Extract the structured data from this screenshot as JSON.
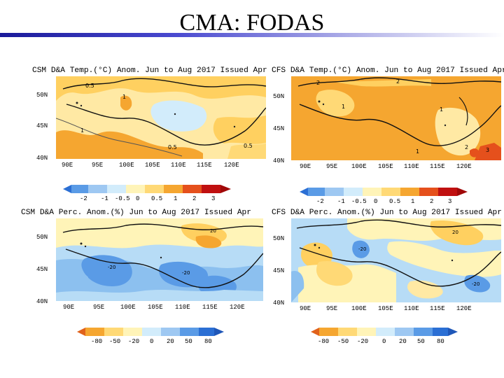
{
  "slide": {
    "title": "CMA: FODAS"
  },
  "panels": [
    {
      "title": "CSM D&A Temp.(°C) Anom. Jun to Aug 2017 Issued Apr",
      "yticks": [
        "50N",
        "45N",
        "40N"
      ],
      "xticks": [
        "90E",
        "95E",
        "100E",
        "105E",
        "110E",
        "115E",
        "120E"
      ]
    },
    {
      "title": "CFS D&A Temp.(°C) Anom. Jun to Aug 2017 Issued Apr",
      "yticks": [
        "50N",
        "45N",
        "40N"
      ],
      "xticks": [
        "90E",
        "95E",
        "100E",
        "105E",
        "110E",
        "115E",
        "120E"
      ]
    },
    {
      "title": "CSM D&A Perc. Anom.(%) Jun to Aug 2017 Issued Apr",
      "yticks": [
        "50N",
        "45N",
        "40N"
      ],
      "xticks": [
        "90E",
        "95E",
        "100E",
        "105E",
        "110E",
        "115E",
        "120E"
      ]
    },
    {
      "title": "CFS D&A Perc. Anom.(%) Jun to Aug 2017 Issued Apr",
      "yticks": [
        "50N",
        "45N",
        "40N"
      ],
      "xticks": [
        "90E",
        "95E",
        "100E",
        "105E",
        "110E",
        "115E",
        "120E"
      ]
    }
  ],
  "colorbars": {
    "temp": {
      "labels": [
        "-2",
        "-1",
        "-0.5",
        "0",
        "0.5",
        "1",
        "2",
        "3"
      ],
      "colors": [
        "#2b6fd4",
        "#5a9be6",
        "#9ec8f2",
        "#d2ecfb",
        "#fff4b8",
        "#ffd976",
        "#f5a630",
        "#e5501c",
        "#c01010"
      ]
    },
    "precip": {
      "labels": [
        "-80",
        "-50",
        "-20",
        "0",
        "20",
        "50",
        "80"
      ],
      "colors": [
        "#e0621c",
        "#f5a630",
        "#ffd976",
        "#fff4b8",
        "#d2ecfb",
        "#9ec8f2",
        "#5a9be6",
        "#2b6fd4"
      ]
    }
  },
  "colors": {
    "t_light": "#ffe9a4",
    "t_med": "#ffd060",
    "t_dark": "#f5a630",
    "t_red": "#e5501c",
    "t_blue": "#d2ecfb",
    "p_yellow": "#fff4b8",
    "p_orange": "#ffd060",
    "p_lightblue": "#b7dcf6",
    "p_blue": "#8cc0ef",
    "p_darkblue": "#5a9be6"
  }
}
